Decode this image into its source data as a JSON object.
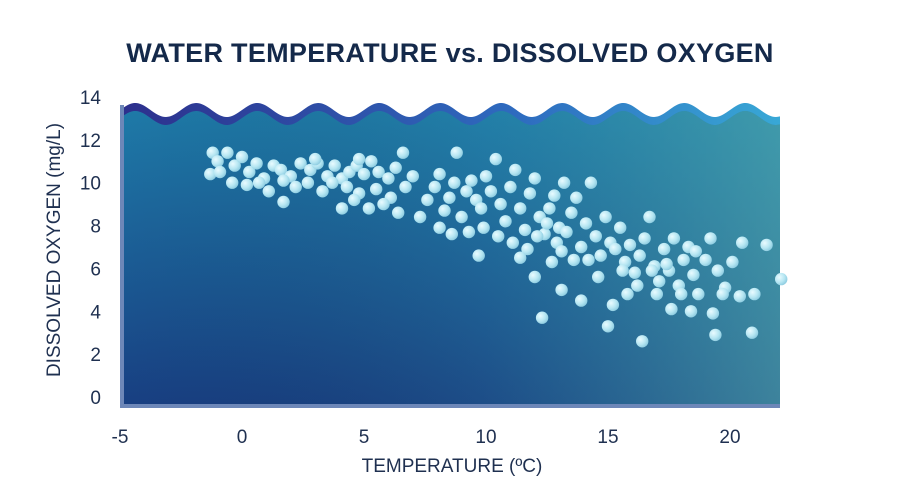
{
  "chart_data": {
    "type": "scatter",
    "title": "WATER TEMPERATURE vs. DISSOLVED OXYGEN",
    "xlabel": "TEMPERATURE (ºC)",
    "ylabel": "DISSOLVED OXYGEN (mg/L)",
    "xlim": [
      -5,
      22
    ],
    "ylim": [
      0,
      14
    ],
    "xticks": [
      "-5",
      "0",
      "5",
      "10",
      "15",
      "20"
    ],
    "yticks": [
      "0",
      "2",
      "4",
      "6",
      "8",
      "10",
      "12",
      "14"
    ],
    "grid": false,
    "legend": "none",
    "colors": {
      "title": "#14294a",
      "background_top": "#1e6fa6",
      "background_bottom": "#173a7e",
      "background_right": "#4aa0a8",
      "points": "#b8e8f4"
    },
    "points": [
      [
        -1.2,
        11.4
      ],
      [
        -1.0,
        11.0
      ],
      [
        -0.6,
        11.4
      ],
      [
        -0.3,
        10.8
      ],
      [
        0.0,
        11.2
      ],
      [
        0.3,
        10.5
      ],
      [
        0.6,
        10.9
      ],
      [
        0.9,
        10.2
      ],
      [
        1.3,
        10.8
      ],
      [
        1.6,
        10.6
      ],
      [
        2.0,
        10.3
      ],
      [
        2.4,
        10.9
      ],
      [
        2.8,
        10.6
      ],
      [
        3.1,
        10.9
      ],
      [
        3.5,
        10.3
      ],
      [
        3.8,
        10.8
      ],
      [
        4.1,
        10.2
      ],
      [
        4.4,
        10.5
      ],
      [
        4.7,
        10.8
      ],
      [
        5.0,
        10.4
      ],
      [
        5.3,
        11.0
      ],
      [
        5.6,
        10.5
      ],
      [
        6.0,
        10.2
      ],
      [
        6.3,
        10.7
      ],
      [
        6.6,
        11.4
      ],
      [
        -1.3,
        10.4
      ],
      [
        -0.9,
        10.5
      ],
      [
        -0.4,
        10.0
      ],
      [
        0.2,
        9.9
      ],
      [
        0.7,
        10.0
      ],
      [
        1.1,
        9.6
      ],
      [
        1.7,
        10.1
      ],
      [
        2.2,
        9.8
      ],
      [
        2.7,
        10.0
      ],
      [
        3.3,
        9.6
      ],
      [
        3.7,
        10.0
      ],
      [
        4.3,
        9.8
      ],
      [
        4.8,
        9.5
      ],
      [
        5.5,
        9.7
      ],
      [
        6.1,
        9.3
      ],
      [
        6.7,
        9.8
      ],
      [
        7.0,
        10.3
      ],
      [
        4.1,
        8.8
      ],
      [
        4.6,
        9.2
      ],
      [
        5.2,
        8.8
      ],
      [
        5.8,
        9.0
      ],
      [
        6.4,
        8.6
      ],
      [
        1.7,
        9.1
      ],
      [
        3.0,
        11.1
      ],
      [
        4.8,
        11.1
      ],
      [
        7.3,
        8.4
      ],
      [
        7.6,
        9.2
      ],
      [
        7.9,
        9.8
      ],
      [
        8.1,
        10.4
      ],
      [
        8.3,
        8.7
      ],
      [
        8.5,
        9.3
      ],
      [
        8.7,
        10.0
      ],
      [
        8.8,
        11.4
      ],
      [
        9.0,
        8.4
      ],
      [
        9.2,
        9.6
      ],
      [
        9.4,
        10.1
      ],
      [
        9.6,
        9.2
      ],
      [
        9.8,
        8.8
      ],
      [
        10.0,
        10.3
      ],
      [
        10.2,
        9.6
      ],
      [
        10.4,
        11.1
      ],
      [
        10.6,
        9.0
      ],
      [
        10.8,
        8.2
      ],
      [
        11.0,
        9.8
      ],
      [
        11.2,
        10.6
      ],
      [
        11.4,
        8.8
      ],
      [
        11.6,
        7.8
      ],
      [
        11.8,
        9.5
      ],
      [
        12.0,
        10.2
      ],
      [
        12.2,
        8.4
      ],
      [
        12.4,
        7.6
      ],
      [
        12.6,
        8.8
      ],
      [
        12.8,
        9.4
      ],
      [
        13.0,
        7.9
      ],
      [
        13.2,
        10.0
      ],
      [
        8.1,
        7.9
      ],
      [
        8.6,
        7.6
      ],
      [
        9.3,
        7.7
      ],
      [
        9.9,
        7.9
      ],
      [
        10.5,
        7.5
      ],
      [
        11.1,
        7.2
      ],
      [
        11.7,
        6.9
      ],
      [
        12.1,
        7.5
      ],
      [
        12.5,
        8.1
      ],
      [
        12.9,
        7.2
      ],
      [
        13.1,
        6.8
      ],
      [
        13.3,
        7.7
      ],
      [
        13.5,
        8.6
      ],
      [
        13.7,
        9.3
      ],
      [
        13.9,
        7.0
      ],
      [
        14.1,
        8.1
      ],
      [
        14.3,
        10.0
      ],
      [
        14.5,
        7.5
      ],
      [
        14.7,
        6.6
      ],
      [
        14.9,
        8.4
      ],
      [
        15.1,
        7.2
      ],
      [
        15.3,
        6.9
      ],
      [
        15.5,
        7.9
      ],
      [
        15.7,
        6.3
      ],
      [
        15.9,
        7.1
      ],
      [
        16.1,
        5.8
      ],
      [
        16.3,
        6.6
      ],
      [
        16.5,
        7.4
      ],
      [
        16.7,
        8.4
      ],
      [
        16.9,
        6.1
      ],
      [
        17.1,
        5.4
      ],
      [
        17.3,
        6.9
      ],
      [
        17.5,
        5.9
      ],
      [
        17.7,
        7.4
      ],
      [
        17.9,
        5.2
      ],
      [
        18.1,
        6.4
      ],
      [
        18.3,
        7.0
      ],
      [
        18.5,
        5.7
      ],
      [
        18.7,
        4.8
      ],
      [
        19.0,
        6.4
      ],
      [
        19.2,
        7.4
      ],
      [
        19.5,
        5.9
      ],
      [
        19.8,
        5.1
      ],
      [
        20.1,
        6.3
      ],
      [
        20.5,
        7.2
      ],
      [
        21.0,
        4.8
      ],
      [
        21.5,
        7.1
      ],
      [
        22.1,
        5.5
      ],
      [
        9.7,
        6.6
      ],
      [
        11.4,
        6.5
      ],
      [
        12.0,
        5.6
      ],
      [
        12.3,
        3.7
      ],
      [
        13.1,
        5.0
      ],
      [
        13.9,
        4.5
      ],
      [
        14.6,
        5.6
      ],
      [
        15.0,
        3.3
      ],
      [
        15.2,
        4.3
      ],
      [
        15.8,
        4.8
      ],
      [
        16.2,
        5.2
      ],
      [
        16.4,
        2.6
      ],
      [
        17.0,
        4.8
      ],
      [
        17.6,
        4.1
      ],
      [
        18.0,
        4.8
      ],
      [
        18.4,
        4.0
      ],
      [
        19.3,
        3.9
      ],
      [
        19.4,
        2.9
      ],
      [
        20.4,
        4.7
      ],
      [
        20.9,
        3.0
      ],
      [
        19.7,
        4.8
      ],
      [
        16.8,
        5.9
      ],
      [
        14.2,
        6.4
      ],
      [
        13.6,
        6.4
      ],
      [
        12.7,
        6.3
      ],
      [
        15.6,
        5.9
      ],
      [
        17.4,
        6.2
      ],
      [
        18.6,
        6.8
      ]
    ]
  }
}
